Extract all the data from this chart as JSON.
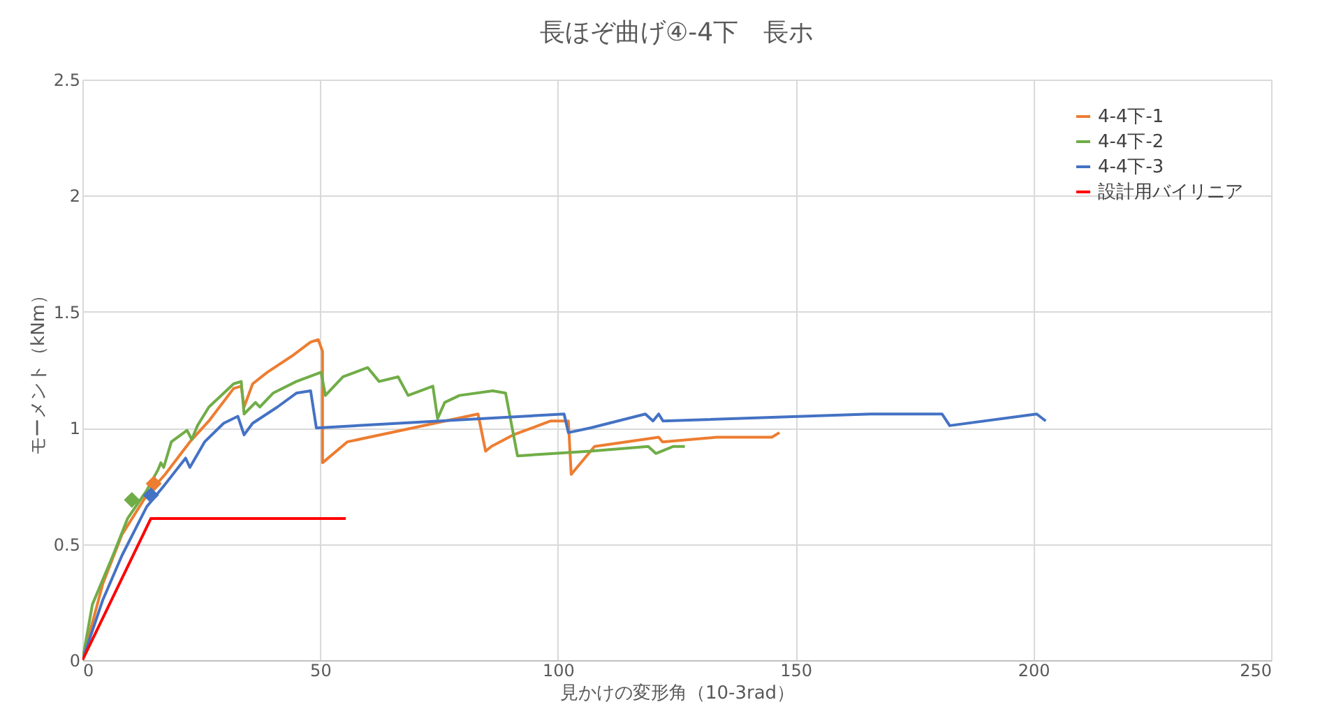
{
  "chart_data": {
    "type": "line",
    "title": "長ほぞ曲げ④-4下　長ホ",
    "xlabel": "見かけの変形角（10-3rad）",
    "ylabel": "モーメント（kNm）",
    "xlim": [
      0,
      250
    ],
    "ylim": [
      0,
      2.5
    ],
    "xticks": [
      0,
      50,
      100,
      150,
      200,
      250
    ],
    "yticks": [
      0,
      0.5,
      1,
      1.5,
      2,
      2.5
    ],
    "grid": true,
    "legend": "top right",
    "line_style": "solid",
    "series": [
      {
        "name": "4-4下-1",
        "color": "#ed7d31",
        "x": [
          0,
          4.3,
          8.3,
          13.5,
          17.4,
          22.6,
          26.6,
          31.8,
          33.4,
          34.0,
          35.8,
          38.9,
          44.1,
          48.0,
          49.6,
          50.5,
          50.5,
          55.7,
          83.2,
          84.8,
          86.0,
          90.6,
          98.5,
          102.2,
          102.8,
          107.7,
          121.2,
          122.0,
          133.4,
          145.0,
          146.6
        ],
        "values": [
          0,
          0.33,
          0.54,
          0.71,
          0.8,
          0.94,
          1.03,
          1.17,
          1.18,
          1.09,
          1.19,
          1.24,
          1.31,
          1.37,
          1.38,
          1.33,
          0.85,
          0.94,
          1.06,
          0.9,
          0.92,
          0.97,
          1.03,
          1.03,
          0.8,
          0.92,
          0.96,
          0.94,
          0.96,
          0.96,
          0.98
        ]
      },
      {
        "name": "4-4下-2",
        "color": "#70ad47",
        "x": [
          0,
          2.1,
          6.4,
          9.5,
          13.5,
          15.9,
          16.5,
          17.1,
          18.7,
          22.0,
          23.0,
          24.2,
          26.6,
          31.8,
          33.4,
          34.0,
          36.4,
          37.3,
          40.1,
          45.0,
          50.2,
          51.1,
          54.8,
          60.0,
          62.4,
          66.4,
          68.5,
          73.7,
          74.7,
          76.2,
          79.3,
          86.3,
          89.0,
          91.5,
          106.8,
          119.0,
          120.6,
          124.2,
          126.7
        ],
        "values": [
          0,
          0.24,
          0.45,
          0.61,
          0.73,
          0.82,
          0.85,
          0.83,
          0.94,
          0.99,
          0.95,
          1.01,
          1.09,
          1.19,
          1.2,
          1.06,
          1.11,
          1.09,
          1.15,
          1.2,
          1.24,
          1.14,
          1.22,
          1.26,
          1.2,
          1.22,
          1.14,
          1.18,
          1.04,
          1.11,
          1.14,
          1.16,
          1.15,
          0.88,
          0.9,
          0.92,
          0.89,
          0.92,
          0.92
        ]
      },
      {
        "name": "4-4下-3",
        "color": "#4472c4",
        "x": [
          0,
          4.3,
          8.3,
          13.5,
          17.1,
          21.7,
          22.6,
          25.7,
          29.7,
          32.7,
          34.0,
          35.8,
          41.0,
          45.0,
          48.0,
          49.2,
          101.3,
          102.2,
          106.8,
          118.4,
          120.0,
          121.2,
          122.1,
          165.8,
          180.8,
          182.4,
          200.7,
          202.6
        ],
        "values": [
          0,
          0.26,
          0.45,
          0.66,
          0.75,
          0.87,
          0.83,
          0.94,
          1.02,
          1.05,
          0.97,
          1.02,
          1.09,
          1.15,
          1.16,
          1.0,
          1.06,
          0.98,
          1.0,
          1.06,
          1.03,
          1.06,
          1.03,
          1.06,
          1.06,
          1.01,
          1.06,
          1.03
        ]
      },
      {
        "name": "設計用バイリニア",
        "color": "#ff0000",
        "x": [
          0,
          14.4,
          55.4
        ],
        "values": [
          0,
          0.61,
          0.61
        ]
      },
      {
        "type": "scatter",
        "marker": "diamond",
        "color": "#ed7d31",
        "x": [
          15.0
        ],
        "values": [
          0.76
        ]
      },
      {
        "type": "scatter",
        "marker": "diamond",
        "color": "#70ad47",
        "x": [
          10.4
        ],
        "values": [
          0.69
        ]
      },
      {
        "type": "scatter",
        "marker": "diamond",
        "color": "#4472c4",
        "x": [
          14.4
        ],
        "values": [
          0.71
        ]
      }
    ]
  }
}
